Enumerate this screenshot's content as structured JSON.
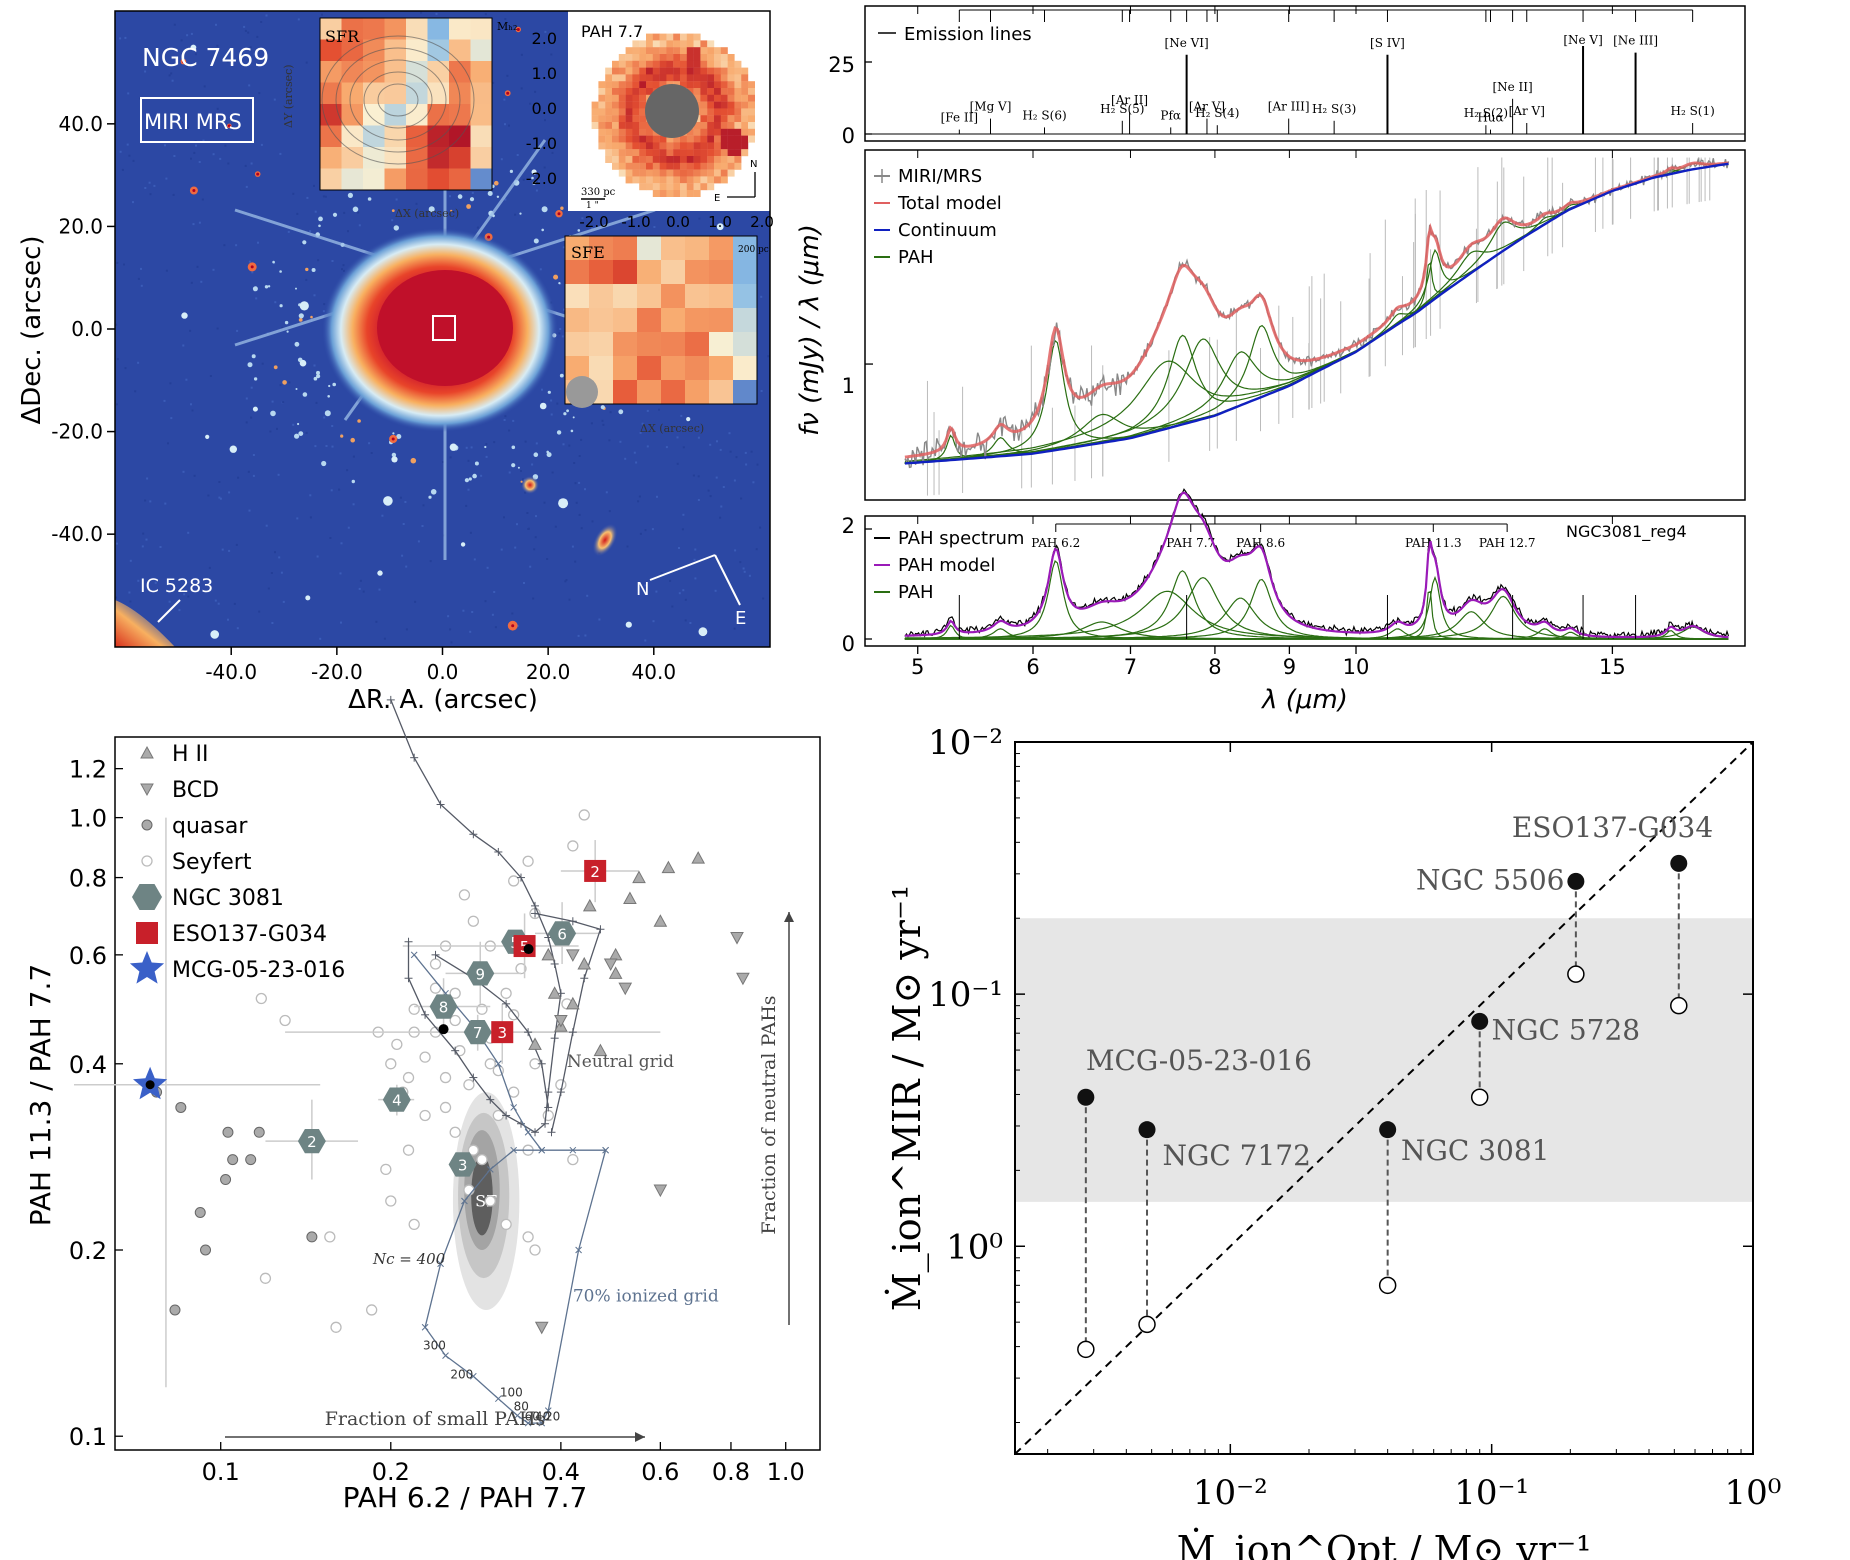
{
  "chart_data": [
    {
      "id": "image",
      "type": "heatmap",
      "target": "NGC 7469",
      "instrument": "MIRI MRS",
      "companion": "IC 5283",
      "xlabel": "ΔR. A. (arcsec)",
      "ylabel": "ΔDec. (arcsec)",
      "xticks": [
        "-40.0",
        "-20.0",
        "0.0",
        "20.0",
        "40.0"
      ],
      "yticks": [
        "40.0",
        "20.0",
        "0.0",
        "-20.0",
        "-40.0"
      ],
      "xtick_values": [
        -40,
        -20,
        0,
        20,
        40
      ],
      "ytick_values": [
        40,
        20,
        0,
        -20,
        -40
      ],
      "xlim": [
        -62,
        62
      ],
      "ylim": [
        -62,
        62
      ],
      "compass": {
        "n": "N",
        "e": "E"
      },
      "insets": [
        {
          "label": "SFR",
          "xlabel": "ΔX (arcsec)",
          "ylabel": "ΔY (arcsec)",
          "legend": "Mₕ₂",
          "yticks": [
            "2.0",
            "1.0",
            "0.0",
            "-1.0",
            "-2.0"
          ]
        },
        {
          "label": "PAH 7.7",
          "scalebar": "330 pc",
          "scalebar2": "1 \"",
          "xticks": [
            "-2.0",
            "-1.0",
            "0.0",
            "1.0",
            "2.0"
          ],
          "compass": {
            "n": "N",
            "e": "E"
          }
        },
        {
          "label": "SFE",
          "scalebar": "200 pc",
          "xlabel": "ΔX (arcsec)"
        }
      ]
    },
    {
      "id": "spectrum",
      "type": "line",
      "xlabel": "λ (μm)",
      "ylabel": "fν (mJy) / λ (μm)",
      "xscale": "log",
      "xticks": [
        5,
        6,
        7,
        8,
        9,
        10,
        15
      ],
      "xlim": [
        4.6,
        18.5
      ],
      "emission_panel": {
        "legend": "Emission lines",
        "yticks": [
          "25",
          "0"
        ],
        "lines": [
          {
            "label": "[Fe II]",
            "x": 5.34,
            "h": 2
          },
          {
            "label": "[Mg V]",
            "x": 5.61,
            "h": 7
          },
          {
            "label": "H₂ S(6)",
            "x": 6.11,
            "h": 3
          },
          {
            "label": "H₂ S(5)",
            "x": 6.91,
            "h": 6
          },
          {
            "label": "[Ar II]",
            "x": 6.99,
            "h": 10
          },
          {
            "label": "Pfα",
            "x": 7.46,
            "h": 3
          },
          {
            "label": "[Ne VI]",
            "x": 7.65,
            "h": 36
          },
          {
            "label": "[Ar V]",
            "x": 7.9,
            "h": 7
          },
          {
            "label": "H₂ S(4)",
            "x": 8.03,
            "h": 4
          },
          {
            "label": "[Ar III]",
            "x": 8.99,
            "h": 7
          },
          {
            "label": "H₂ S(3)",
            "x": 9.66,
            "h": 6
          },
          {
            "label": "[S IV]",
            "x": 10.51,
            "h": 36
          },
          {
            "label": "H₂ S(2)",
            "x": 12.28,
            "h": 4
          },
          {
            "label": "Huα",
            "x": 12.37,
            "h": 2
          },
          {
            "label": "[Ne II]",
            "x": 12.81,
            "h": 16
          },
          {
            "label": "[Ar V]",
            "x": 13.1,
            "h": 5
          },
          {
            "label": "[Ne V]",
            "x": 14.32,
            "h": 40
          },
          {
            "label": "[Ne III]",
            "x": 15.56,
            "h": 37
          },
          {
            "label": "H₂ S(1)",
            "x": 17.03,
            "h": 5
          }
        ]
      },
      "main_panel": {
        "ytick": "1",
        "series": [
          {
            "name": "MIRI/MRS",
            "color": "#888888"
          },
          {
            "name": "Total model",
            "color": "#e06060"
          },
          {
            "name": "Continuum",
            "color": "#1020c0"
          },
          {
            "name": "PAH",
            "color": "#2a6e12"
          }
        ],
        "continuum": {
          "x": [
            4.9,
            6,
            7,
            8,
            9,
            10,
            11,
            12,
            13,
            14,
            15,
            16,
            17,
            18
          ],
          "y": [
            0.62,
            0.65,
            0.7,
            0.78,
            0.9,
            1.06,
            1.28,
            1.55,
            1.83,
            2.1,
            2.3,
            2.45,
            2.55,
            2.62
          ]
        },
        "pah_features": [
          {
            "x": 5.27,
            "a": 0.08,
            "w": 0.04
          },
          {
            "x": 5.7,
            "a": 0.06,
            "w": 0.08
          },
          {
            "x": 6.22,
            "a": 0.46,
            "w": 0.09
          },
          {
            "x": 6.69,
            "a": 0.1,
            "w": 0.25
          },
          {
            "x": 7.42,
            "a": 0.28,
            "w": 0.38
          },
          {
            "x": 7.6,
            "a": 0.4,
            "w": 0.18
          },
          {
            "x": 7.85,
            "a": 0.36,
            "w": 0.25
          },
          {
            "x": 8.33,
            "a": 0.24,
            "w": 0.25
          },
          {
            "x": 8.61,
            "a": 0.35,
            "w": 0.18
          },
          {
            "x": 10.68,
            "a": 0.06,
            "w": 0.15
          },
          {
            "x": 11.23,
            "a": 0.32,
            "w": 0.05
          },
          {
            "x": 11.33,
            "a": 0.36,
            "w": 0.12
          },
          {
            "x": 12.0,
            "a": 0.16,
            "w": 0.3
          },
          {
            "x": 12.62,
            "a": 0.25,
            "w": 0.3
          },
          {
            "x": 13.48,
            "a": 0.06,
            "w": 0.18
          },
          {
            "x": 14.04,
            "a": 0.04,
            "w": 0.16
          },
          {
            "x": 16.45,
            "a": 0.05,
            "w": 0.14
          },
          {
            "x": 17.04,
            "a": 0.07,
            "w": 0.35
          }
        ]
      },
      "pah_panel": {
        "yticks": [
          "2",
          "0"
        ],
        "label": "NGC3081_reg4",
        "series": [
          {
            "name": "PAH spectrum",
            "color": "#000000"
          },
          {
            "name": "PAH model",
            "color": "#9a1ab8"
          },
          {
            "name": "PAH",
            "color": "#2a6e12"
          }
        ],
        "bands": [
          {
            "label": "PAH 6.2",
            "x": 6.22
          },
          {
            "label": "PAH 7.7",
            "x": 7.7
          },
          {
            "label": "PAH 8.6",
            "x": 8.6
          },
          {
            "label": "PAH 11.3",
            "x": 11.3
          },
          {
            "label": "PAH 12.7",
            "x": 12.7
          }
        ]
      }
    },
    {
      "id": "pah_ratios",
      "type": "scatter",
      "xlabel": "PAH 6.2 / PAH 7.7",
      "ylabel": "PAH 11.3 / PAH 7.7",
      "xscale": "log",
      "yscale": "log",
      "xlim": [
        0.065,
        1.15
      ],
      "ylim": [
        0.095,
        1.35
      ],
      "xticks": [
        "0.1",
        "0.2",
        "0.4",
        "0.6",
        "0.8",
        "1.0"
      ],
      "xtick_values": [
        0.1,
        0.2,
        0.4,
        0.6,
        0.8,
        1.0
      ],
      "yticks": [
        "1.2",
        "1.0",
        "0.8",
        "0.6",
        "0.4",
        "0.2",
        "0.1"
      ],
      "ytick_values": [
        1.2,
        1.0,
        0.8,
        0.6,
        0.4,
        0.2,
        0.1
      ],
      "legend": [
        "H II",
        "BCD",
        "quasar",
        "Seyfert",
        "NGC 3081",
        "ESO137-G034",
        "MCG-05-23-016"
      ],
      "annotations": {
        "neutral_grid": "Neutral grid",
        "ionized_grid": "70% ionized grid",
        "sf": "SF",
        "nc": "Nc = 400",
        "grid_labels": [
          "300",
          "200",
          "100",
          "80",
          "60",
          "40",
          "20"
        ],
        "arrow_x": "Fraction of small PAHs",
        "arrow_y": "Fraction of neutral PAHs"
      },
      "ngc3081": [
        {
          "n": "2",
          "x": 0.145,
          "y": 0.3
        },
        {
          "n": "3",
          "x": 0.268,
          "y": 0.275
        },
        {
          "n": "4",
          "x": 0.205,
          "y": 0.35
        },
        {
          "n": "6",
          "x": 0.402,
          "y": 0.65
        },
        {
          "n": "7",
          "x": 0.285,
          "y": 0.45
        },
        {
          "n": "8",
          "x": 0.248,
          "y": 0.495
        },
        {
          "n": "9",
          "x": 0.288,
          "y": 0.56
        },
        {
          "n": "5",
          "x": 0.332,
          "y": 0.63
        }
      ],
      "eso137": [
        {
          "n": "2",
          "x": 0.46,
          "y": 0.82
        },
        {
          "n": "3",
          "x": 0.315,
          "y": 0.45
        },
        {
          "n": "5",
          "x": 0.345,
          "y": 0.62
        }
      ],
      "mcg": {
        "x": 0.075,
        "y": 0.37
      },
      "hii": [
        [
          0.38,
          0.6
        ],
        [
          0.42,
          0.5
        ],
        [
          0.44,
          0.58
        ],
        [
          0.5,
          0.6
        ],
        [
          0.53,
          0.74
        ],
        [
          0.6,
          0.68
        ],
        [
          0.62,
          0.83
        ],
        [
          0.7,
          0.86
        ],
        [
          0.5,
          0.56
        ],
        [
          0.45,
          0.72
        ],
        [
          0.36,
          0.43
        ],
        [
          0.47,
          0.42
        ],
        [
          0.4,
          0.46
        ],
        [
          0.55,
          0.8
        ],
        [
          0.39,
          0.52
        ]
      ],
      "bcd": [
        [
          0.82,
          0.64
        ],
        [
          0.84,
          0.55
        ],
        [
          0.6,
          0.25
        ],
        [
          0.4,
          0.47
        ],
        [
          0.37,
          0.15
        ],
        [
          0.42,
          0.6
        ],
        [
          0.49,
          0.58
        ],
        [
          0.52,
          0.53
        ]
      ],
      "quasar": [
        [
          0.077,
          0.36
        ],
        [
          0.085,
          0.34
        ],
        [
          0.103,
          0.31
        ],
        [
          0.105,
          0.28
        ],
        [
          0.113,
          0.28
        ],
        [
          0.117,
          0.31
        ],
        [
          0.102,
          0.26
        ],
        [
          0.092,
          0.23
        ],
        [
          0.094,
          0.2
        ],
        [
          0.145,
          0.21
        ],
        [
          0.083,
          0.16
        ]
      ],
      "seyfert": [
        [
          0.13,
          0.47
        ],
        [
          0.118,
          0.51
        ],
        [
          0.156,
          0.21
        ],
        [
          0.12,
          0.18
        ],
        [
          0.16,
          0.15
        ],
        [
          0.185,
          0.16
        ],
        [
          0.196,
          0.27
        ],
        [
          0.21,
          0.36
        ],
        [
          0.22,
          0.45
        ],
        [
          0.24,
          0.53
        ],
        [
          0.25,
          0.38
        ],
        [
          0.26,
          0.31
        ],
        [
          0.275,
          0.25
        ],
        [
          0.29,
          0.28
        ],
        [
          0.3,
          0.4
        ],
        [
          0.31,
          0.33
        ],
        [
          0.33,
          0.36
        ],
        [
          0.35,
          0.29
        ],
        [
          0.23,
          0.41
        ],
        [
          0.23,
          0.33
        ],
        [
          0.215,
          0.29
        ],
        [
          0.2,
          0.24
        ],
        [
          0.19,
          0.45
        ],
        [
          0.22,
          0.49
        ],
        [
          0.265,
          0.42
        ],
        [
          0.275,
          0.37
        ],
        [
          0.3,
          0.44
        ],
        [
          0.32,
          0.52
        ],
        [
          0.34,
          0.57
        ],
        [
          0.36,
          0.7
        ],
        [
          0.27,
          0.75
        ],
        [
          0.25,
          0.62
        ],
        [
          0.24,
          0.58
        ],
        [
          0.33,
          0.48
        ],
        [
          0.36,
          0.4
        ],
        [
          0.38,
          0.33
        ],
        [
          0.42,
          0.28
        ],
        [
          0.4,
          0.37
        ],
        [
          0.41,
          0.5
        ],
        [
          0.44,
          1.01
        ],
        [
          0.42,
          0.9
        ],
        [
          0.35,
          0.85
        ],
        [
          0.33,
          0.79
        ],
        [
          0.28,
          0.68
        ],
        [
          0.3,
          0.62
        ],
        [
          0.26,
          0.52
        ],
        [
          0.24,
          0.45
        ],
        [
          0.25,
          0.34
        ],
        [
          0.28,
          0.29
        ],
        [
          0.3,
          0.24
        ],
        [
          0.32,
          0.22
        ],
        [
          0.35,
          0.21
        ],
        [
          0.36,
          0.2
        ],
        [
          0.22,
          0.22
        ],
        [
          0.2,
          0.4
        ],
        [
          0.205,
          0.43
        ],
        [
          0.215,
          0.38
        ],
        [
          0.31,
          0.39
        ],
        [
          0.26,
          0.47
        ],
        [
          0.29,
          0.49
        ]
      ],
      "neutral_grid": [
        [
          0.2,
          1.55
        ],
        [
          0.22,
          1.25
        ],
        [
          0.245,
          1.05
        ],
        [
          0.28,
          0.94
        ],
        [
          0.31,
          0.88
        ],
        [
          0.34,
          0.8
        ],
        [
          0.36,
          0.72
        ],
        [
          0.38,
          0.64
        ],
        [
          0.39,
          0.58
        ],
        [
          0.4,
          0.52
        ],
        [
          0.39,
          0.44
        ],
        [
          0.38,
          0.36
        ],
        [
          0.375,
          0.32
        ],
        [
          0.36,
          0.31
        ],
        [
          0.34,
          0.32
        ],
        [
          0.32,
          0.33
        ],
        [
          0.3,
          0.35
        ],
        [
          0.28,
          0.38
        ],
        [
          0.26,
          0.42
        ],
        [
          0.23,
          0.48
        ],
        [
          0.215,
          0.55
        ],
        [
          0.215,
          0.63
        ]
      ],
      "neutral_grid2": [
        [
          0.24,
          0.6
        ],
        [
          0.28,
          0.55
        ],
        [
          0.32,
          0.5
        ],
        [
          0.35,
          0.45
        ],
        [
          0.37,
          0.4
        ],
        [
          0.38,
          0.34
        ]
      ],
      "neutral_grid3": [
        [
          0.36,
          0.7
        ],
        [
          0.42,
          0.68
        ],
        [
          0.47,
          0.66
        ],
        [
          0.44,
          0.55
        ],
        [
          0.42,
          0.45
        ],
        [
          0.4,
          0.36
        ],
        [
          0.385,
          0.31
        ]
      ],
      "ionized_grid": [
        [
          0.48,
          0.29
        ],
        [
          0.42,
          0.29
        ],
        [
          0.37,
          0.29
        ],
        [
          0.33,
          0.29
        ],
        [
          0.3,
          0.27
        ],
        [
          0.27,
          0.24
        ],
        [
          0.245,
          0.19
        ],
        [
          0.23,
          0.15
        ],
        [
          0.25,
          0.135
        ],
        [
          0.28,
          0.125
        ],
        [
          0.31,
          0.115
        ],
        [
          0.335,
          0.108
        ],
        [
          0.35,
          0.105
        ],
        [
          0.37,
          0.105
        ],
        [
          0.38,
          0.11
        ],
        [
          0.43,
          0.2
        ],
        [
          0.48,
          0.29
        ]
      ],
      "ionized_grid2": [
        [
          0.22,
          0.6
        ],
        [
          0.25,
          0.52
        ],
        [
          0.28,
          0.46
        ],
        [
          0.31,
          0.4
        ],
        [
          0.33,
          0.34
        ],
        [
          0.35,
          0.31
        ],
        [
          0.37,
          0.29
        ]
      ],
      "sf_contours": [
        {
          "cx": 0.295,
          "cy": 0.24,
          "rx": 0.145,
          "ry": 0.5,
          "color": "#e3e3e3"
        },
        {
          "cx": 0.292,
          "cy": 0.245,
          "rx": 0.11,
          "ry": 0.36,
          "color": "#c6c6c6"
        },
        {
          "cx": 0.29,
          "cy": 0.25,
          "rx": 0.075,
          "ry": 0.25,
          "color": "#a4a4a4"
        },
        {
          "cx": 0.29,
          "cy": 0.245,
          "rx": 0.045,
          "ry": 0.16,
          "color": "#5e5e5e"
        }
      ]
    },
    {
      "id": "outflow",
      "type": "scatter",
      "xlabel": "Ṁ_ion^Opt / M⊙ yr⁻¹",
      "ylabel": "Ṁ_ion^MIR / M⊙ yr⁻¹",
      "xscale": "log",
      "yscale": "log",
      "xlim": [
        0.0015,
        1.0
      ],
      "ylim": [
        0.0015,
        1.0
      ],
      "xticks": [
        "10⁻²",
        "10⁻¹",
        "10⁰"
      ],
      "yticks": [
        "10⁰",
        "10⁻¹",
        "10⁻²"
      ],
      "tick_values": [
        0.01,
        0.1,
        1.0
      ],
      "shaded_band": [
        0.015,
        0.2
      ],
      "points": [
        {
          "name": "MCG-05-23-016",
          "x": 0.0028,
          "mir": 0.039,
          "opt": 0.0039
        },
        {
          "name": "NGC 7172",
          "x": 0.0048,
          "mir": 0.029,
          "opt": 0.0049
        },
        {
          "name": "NGC 3081",
          "x": 0.04,
          "mir": 0.029,
          "opt": 0.007
        },
        {
          "name": "NGC 5728",
          "x": 0.09,
          "mir": 0.078,
          "opt": 0.039
        },
        {
          "name": "NGC 5506",
          "x": 0.21,
          "mir": 0.28,
          "opt": 0.12
        },
        {
          "name": "ESO137-G034",
          "x": 0.52,
          "mir": 0.33,
          "opt": 0.09
        }
      ]
    }
  ]
}
